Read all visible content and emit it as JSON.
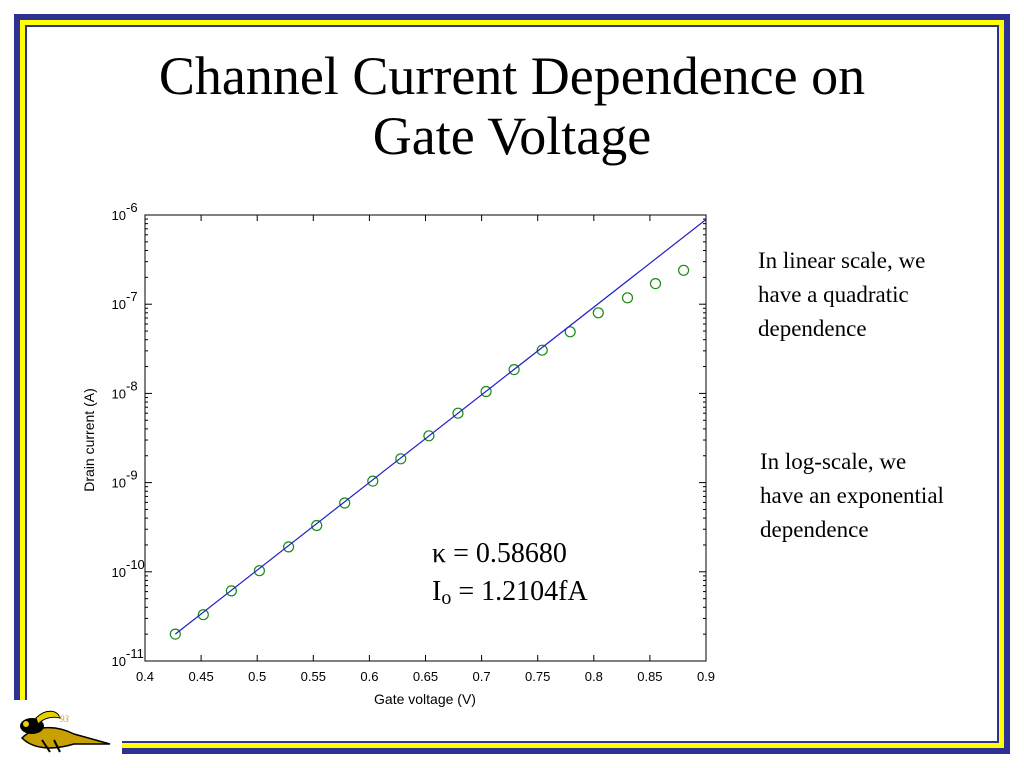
{
  "slide": {
    "title_line1": "Channel Current Dependence on",
    "title_line2": "Gate Voltage",
    "note_linear": [
      "In linear scale, we",
      "have a quadratic",
      "dependence"
    ],
    "note_log": [
      "In log-scale, we",
      "have an exponential",
      "dependence"
    ],
    "fit": {
      "kappa_symbol": "κ",
      "kappa_text": " = 0.58680",
      "io_symbol": "I",
      "io_sub": "o",
      "io_text": " = 1.2104fA"
    },
    "colors": {
      "frame_blue": "#2e3192",
      "frame_yellow": "#ffff00"
    }
  },
  "chart_data": {
    "type": "scatter",
    "xlabel": "Gate voltage (V)",
    "ylabel": "Drain current (A)",
    "xlim": [
      0.4,
      0.9
    ],
    "ylim": [
      1e-11,
      1e-06
    ],
    "yscale": "log",
    "grid": false,
    "xticks": [
      0.4,
      0.45,
      0.5,
      0.55,
      0.6,
      0.65,
      0.7,
      0.75,
      0.8,
      0.85,
      0.9
    ],
    "xtick_labels": [
      "0.4",
      "0.45",
      "0.5",
      "0.55",
      "0.6",
      "0.65",
      "0.7",
      "0.75",
      "0.8",
      "0.85",
      "0.9"
    ],
    "yticks": [
      {
        "value": 1e-11,
        "base": "10",
        "exp": "-11"
      },
      {
        "value": 1e-10,
        "base": "10",
        "exp": "-10"
      },
      {
        "value": 1e-09,
        "base": "10",
        "exp": "-9"
      },
      {
        "value": 1e-08,
        "base": "10",
        "exp": "-8"
      },
      {
        "value": 1e-07,
        "base": "10",
        "exp": "-7"
      },
      {
        "value": 1e-06,
        "base": "10",
        "exp": "-6"
      }
    ],
    "series": [
      {
        "kind": "markers",
        "color": "#1a8a1a",
        "x": [
          0.427,
          0.452,
          0.477,
          0.502,
          0.528,
          0.553,
          0.578,
          0.603,
          0.628,
          0.653,
          0.679,
          0.704,
          0.729,
          0.754,
          0.779,
          0.804,
          0.83,
          0.855,
          0.88
        ],
        "y": [
          2e-11,
          3.3e-11,
          6.1e-11,
          1.03e-10,
          1.9e-10,
          3.3e-10,
          5.9e-10,
          1.04e-09,
          1.85e-09,
          3.35e-09,
          6e-09,
          1.05e-08,
          1.85e-08,
          3.05e-08,
          4.9e-08,
          8e-08,
          1.18e-07,
          1.7e-07,
          2.4e-07
        ]
      },
      {
        "kind": "line",
        "color": "#2020c8",
        "x": [
          0.427,
          0.9
        ],
        "y": [
          2e-11,
          8.9e-07
        ]
      }
    ]
  }
}
